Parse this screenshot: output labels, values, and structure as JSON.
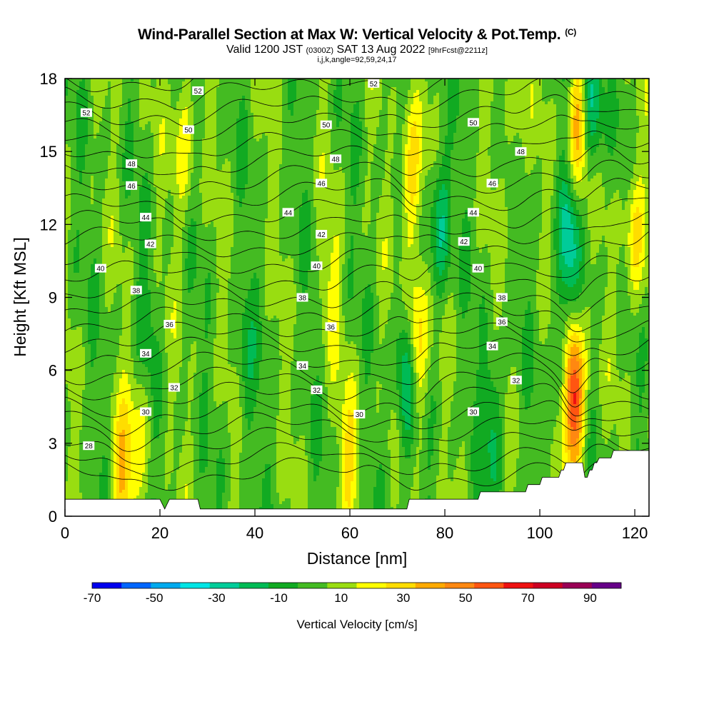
{
  "header": {
    "title": "Wind-Parallel Section at Max W: Vertical Velocity & Pot.Temp.",
    "copyright_mark": "(C)",
    "valid_prefix": "Valid 1200 JST",
    "valid_utc": "(0300Z)",
    "valid_date": "SAT 13 Aug 2022",
    "forecast_info": "[9hrFcst@2211z]",
    "section_params": "i,j,k,angle=92,59,24,17"
  },
  "chart_data": {
    "type": "heatmap",
    "overlay": "contour",
    "title": "Wind-Parallel Section at Max W: Vertical Velocity & Pot.Temp.",
    "xlabel": "Distance [nm]",
    "ylabel": "Height [Kft MSL]",
    "xlim": [
      0,
      123
    ],
    "ylim": [
      0,
      18
    ],
    "x_ticks": [
      "0",
      "20",
      "40",
      "60",
      "80",
      "100",
      "120"
    ],
    "y_ticks": [
      "0",
      "3",
      "6",
      "9",
      "12",
      "15",
      "18"
    ],
    "colorbar": {
      "label": "Vertical Velocity [cm/s]",
      "range": [
        -70,
        100
      ],
      "tick_labels": [
        "-70",
        "-50",
        "-30",
        "-10",
        "10",
        "30",
        "50",
        "70",
        "90"
      ],
      "colors": [
        "#0000ee",
        "#0066ff",
        "#00aaee",
        "#00e5e5",
        "#00cc99",
        "#00bb55",
        "#11aa22",
        "#44bb22",
        "#99dd11",
        "#ffff00",
        "#ffdd00",
        "#ffaa00",
        "#ff8811",
        "#ff5511",
        "#ee1111",
        "#cc0022",
        "#990055",
        "#660088"
      ]
    },
    "contour_labels": [
      "28",
      "30",
      "32",
      "34",
      "36",
      "38",
      "40",
      "42",
      "44",
      "46",
      "48",
      "50",
      "52"
    ],
    "theta_levels": [
      28,
      29,
      30,
      31,
      32,
      33,
      34,
      35,
      36,
      37,
      38,
      39,
      40,
      41,
      42,
      43,
      44,
      45,
      46,
      47,
      48,
      49,
      50,
      51,
      52,
      53
    ],
    "updrafts": [
      {
        "x": 12,
        "y": 1.5,
        "w": 30
      },
      {
        "x": 16,
        "y": 4.5,
        "w": 15
      },
      {
        "x": 25,
        "y": 15.5,
        "w": 20
      },
      {
        "x": 56,
        "y": 9.5,
        "w": 12
      },
      {
        "x": 60,
        "y": 2.5,
        "w": 20
      },
      {
        "x": 74,
        "y": 7.0,
        "w": 38
      },
      {
        "x": 73,
        "y": 14.0,
        "w": 30
      },
      {
        "x": 95,
        "y": 16.0,
        "w": 12
      },
      {
        "x": 107,
        "y": 5.0,
        "w": 75
      },
      {
        "x": 108,
        "y": 16.0,
        "w": 38
      },
      {
        "x": 120,
        "y": 11.5,
        "w": 25
      }
    ],
    "downdrafts": [
      {
        "x": 72,
        "y": 5.5,
        "w": -35
      },
      {
        "x": 79,
        "y": 12.0,
        "w": -28
      },
      {
        "x": 90,
        "y": 4.0,
        "w": -20
      },
      {
        "x": 105,
        "y": 6.0,
        "w": -25
      },
      {
        "x": 106,
        "y": 11.5,
        "w": -30
      },
      {
        "x": 111,
        "y": 17.0,
        "w": -32
      },
      {
        "x": 17,
        "y": 7.5,
        "w": -12
      },
      {
        "x": 38,
        "y": 6.0,
        "w": -12
      }
    ],
    "terrain": [
      {
        "x": 0,
        "h": 0.7
      },
      {
        "x": 20,
        "h": 0.7
      },
      {
        "x": 21,
        "h": 0.3
      },
      {
        "x": 22,
        "h": 0.7
      },
      {
        "x": 28,
        "h": 0.7
      },
      {
        "x": 28.5,
        "h": 0.3
      },
      {
        "x": 72,
        "h": 0.3
      },
      {
        "x": 72.5,
        "h": 0.7
      },
      {
        "x": 87,
        "h": 0.7
      },
      {
        "x": 87.5,
        "h": 1.0
      },
      {
        "x": 97,
        "h": 1.0
      },
      {
        "x": 97.5,
        "h": 1.3
      },
      {
        "x": 100,
        "h": 1.3
      },
      {
        "x": 100.5,
        "h": 1.6
      },
      {
        "x": 104,
        "h": 1.6
      },
      {
        "x": 104.5,
        "h": 1.9
      },
      {
        "x": 105,
        "h": 1.9
      },
      {
        "x": 105.5,
        "h": 2.2
      },
      {
        "x": 109,
        "h": 2.2
      },
      {
        "x": 109.5,
        "h": 1.6
      },
      {
        "x": 110,
        "h": 1.6
      },
      {
        "x": 110.5,
        "h": 1.9
      },
      {
        "x": 111,
        "h": 1.9
      },
      {
        "x": 111.5,
        "h": 2.2
      },
      {
        "x": 112,
        "h": 2.2
      },
      {
        "x": 112.5,
        "h": 2.4
      },
      {
        "x": 115,
        "h": 2.4
      },
      {
        "x": 115.5,
        "h": 2.7
      },
      {
        "x": 123,
        "h": 2.7
      }
    ],
    "contour_label_positions": [
      {
        "t": "52",
        "x": 4.5,
        "y": 16.6
      },
      {
        "t": "52",
        "x": 28,
        "y": 17.5
      },
      {
        "t": "52",
        "x": 65,
        "y": 17.8
      },
      {
        "t": "50",
        "x": 26,
        "y": 15.9
      },
      {
        "t": "50",
        "x": 55,
        "y": 16.1
      },
      {
        "t": "50",
        "x": 86,
        "y": 16.2
      },
      {
        "t": "48",
        "x": 14,
        "y": 14.5
      },
      {
        "t": "48",
        "x": 57,
        "y": 14.7
      },
      {
        "t": "48",
        "x": 96,
        "y": 15.0
      },
      {
        "t": "46",
        "x": 14,
        "y": 13.6
      },
      {
        "t": "46",
        "x": 54,
        "y": 13.7
      },
      {
        "t": "46",
        "x": 90,
        "y": 13.7
      },
      {
        "t": "44",
        "x": 17,
        "y": 12.3
      },
      {
        "t": "44",
        "x": 47,
        "y": 12.5
      },
      {
        "t": "44",
        "x": 86,
        "y": 12.5
      },
      {
        "t": "42",
        "x": 18,
        "y": 11.2
      },
      {
        "t": "42",
        "x": 54,
        "y": 11.6
      },
      {
        "t": "42",
        "x": 84,
        "y": 11.3
      },
      {
        "t": "40",
        "x": 7.5,
        "y": 10.2
      },
      {
        "t": "40",
        "x": 53,
        "y": 10.3
      },
      {
        "t": "40",
        "x": 87,
        "y": 10.2
      },
      {
        "t": "38",
        "x": 15,
        "y": 9.3
      },
      {
        "t": "38",
        "x": 50,
        "y": 9.0
      },
      {
        "t": "38",
        "x": 92,
        "y": 9.0
      },
      {
        "t": "36",
        "x": 22,
        "y": 7.9
      },
      {
        "t": "36",
        "x": 56,
        "y": 7.8
      },
      {
        "t": "36",
        "x": 92,
        "y": 8.0
      },
      {
        "t": "34",
        "x": 17,
        "y": 6.7
      },
      {
        "t": "34",
        "x": 50,
        "y": 6.2
      },
      {
        "t": "34",
        "x": 90,
        "y": 7.0
      },
      {
        "t": "32",
        "x": 23,
        "y": 5.3
      },
      {
        "t": "32",
        "x": 53,
        "y": 5.2
      },
      {
        "t": "32",
        "x": 95,
        "y": 5.6
      },
      {
        "t": "30",
        "x": 17,
        "y": 4.3
      },
      {
        "t": "30",
        "x": 62,
        "y": 4.2
      },
      {
        "t": "30",
        "x": 86,
        "y": 4.3
      },
      {
        "t": "28",
        "x": 5,
        "y": 2.9
      }
    ]
  }
}
